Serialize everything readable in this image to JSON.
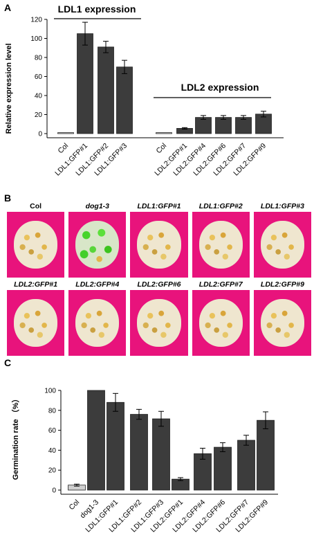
{
  "panels": {
    "a": "A",
    "b": "B",
    "c": "C"
  },
  "chart_data": [
    {
      "type": "bar",
      "title": "",
      "ylabel": "Relative expression level",
      "xlabel": "",
      "ylim": [
        0,
        120
      ],
      "yticks": [
        0,
        20,
        40,
        60,
        80,
        100,
        120
      ],
      "group_labels": [
        "LDL1 expression",
        "LDL2 expression"
      ],
      "categories": [
        "Col",
        "LDL1:GFP#1",
        "LDL1:GFP#2",
        "LDL1:GFP#3",
        "Col",
        "LDL2:GFP#1",
        "LDL2:GFP#4",
        "LDL2:GFP#6",
        "LDL2:GFP#7",
        "LDL2:GFP#9"
      ],
      "values": [
        1,
        105,
        91,
        70,
        1,
        5.5,
        17,
        17,
        17,
        20.5
      ],
      "errors": [
        0,
        12,
        6,
        7,
        0,
        0.8,
        2,
        2,
        2,
        3
      ],
      "colors": [
        "#d0d0d0",
        "#3c3c3c",
        "#3c3c3c",
        "#3c3c3c",
        "#d0d0d0",
        "#3c3c3c",
        "#3c3c3c",
        "#3c3c3c",
        "#3c3c3c",
        "#3c3c3c"
      ],
      "grid": false
    },
    {
      "type": "bar",
      "title": "",
      "ylabel": "Germination rate （%）",
      "xlabel": "",
      "ylim": [
        0,
        100
      ],
      "yticks": [
        0,
        20,
        40,
        60,
        80,
        100
      ],
      "categories": [
        "Col",
        "dog1-3",
        "LDL1:GFP#1",
        "LDL1:GFP#2",
        "LDL1:GFP#3",
        "LDL2:GFP#1",
        "LDL2:GFP#4",
        "LDL2:GFP#6",
        "LDL2:GFP#7",
        "LDL2:GFP#9"
      ],
      "values": [
        5,
        100,
        88,
        76,
        71.5,
        11,
        36.5,
        43,
        50,
        70
      ],
      "errors": [
        1,
        0,
        9,
        5,
        7.5,
        1.5,
        5.5,
        4.5,
        5,
        8.5
      ],
      "colors": [
        "#d0d0d0",
        "#3c3c3c",
        "#3c3c3c",
        "#3c3c3c",
        "#3c3c3c",
        "#3c3c3c",
        "#3c3c3c",
        "#3c3c3c",
        "#3c3c3c",
        "#3c3c3c"
      ],
      "grid": false
    }
  ],
  "photos": {
    "row1": [
      {
        "label": "Col",
        "italic": false,
        "green": false
      },
      {
        "label": "dog1-3",
        "italic": true,
        "green": true
      },
      {
        "label": "LDL1:GFP#1",
        "italic": true,
        "green": false
      },
      {
        "label": "LDL1:GFP#2",
        "italic": true,
        "green": false
      },
      {
        "label": "LDL1:GFP#3",
        "italic": true,
        "green": false
      }
    ],
    "row2": [
      {
        "label": "LDL2:GFP#1",
        "italic": true,
        "green": false
      },
      {
        "label": "LDL2:GFP#4",
        "italic": true,
        "green": false
      },
      {
        "label": "LDL2:GFP#6",
        "italic": true,
        "green": false
      },
      {
        "label": "LDL2:GFP#7",
        "italic": true,
        "green": false
      },
      {
        "label": "LDL2:GFP#9",
        "italic": true,
        "green": false
      }
    ]
  }
}
